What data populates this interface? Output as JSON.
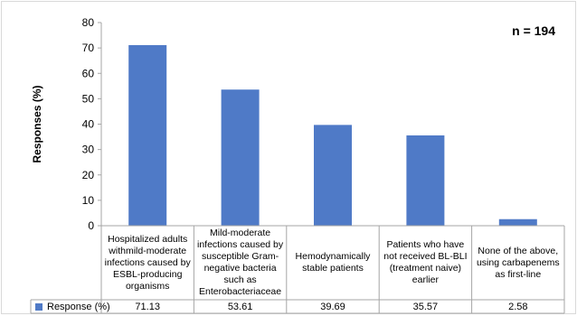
{
  "chart_data": {
    "type": "bar",
    "ylabel": "Responses (%)",
    "ylim": [
      0,
      80
    ],
    "yticks": [
      0,
      10,
      20,
      30,
      40,
      50,
      60,
      70,
      80
    ],
    "annotation": "n = 194",
    "categories": [
      "Hospitalized adults withmild-moderate infections caused by ESBL-producing organisms",
      "Mild-moderate infections caused by susceptible Gram-negative bacteria such as Enterobacteriaceae",
      "Hemodynamically stable patients",
      "Patients who have not received BL-BLI (treatment naive) earlier",
      "None of the above, using carbapenems as first-line"
    ],
    "series": [
      {
        "name": "Response (%)",
        "values": [
          71.13,
          53.61,
          39.69,
          35.57,
          2.58
        ],
        "value_labels": [
          "71.13",
          "53.61",
          "39.69",
          "35.57",
          "2.58"
        ],
        "color": "#4f7ac7"
      }
    ],
    "grid": false,
    "legend": "data-table-left"
  }
}
